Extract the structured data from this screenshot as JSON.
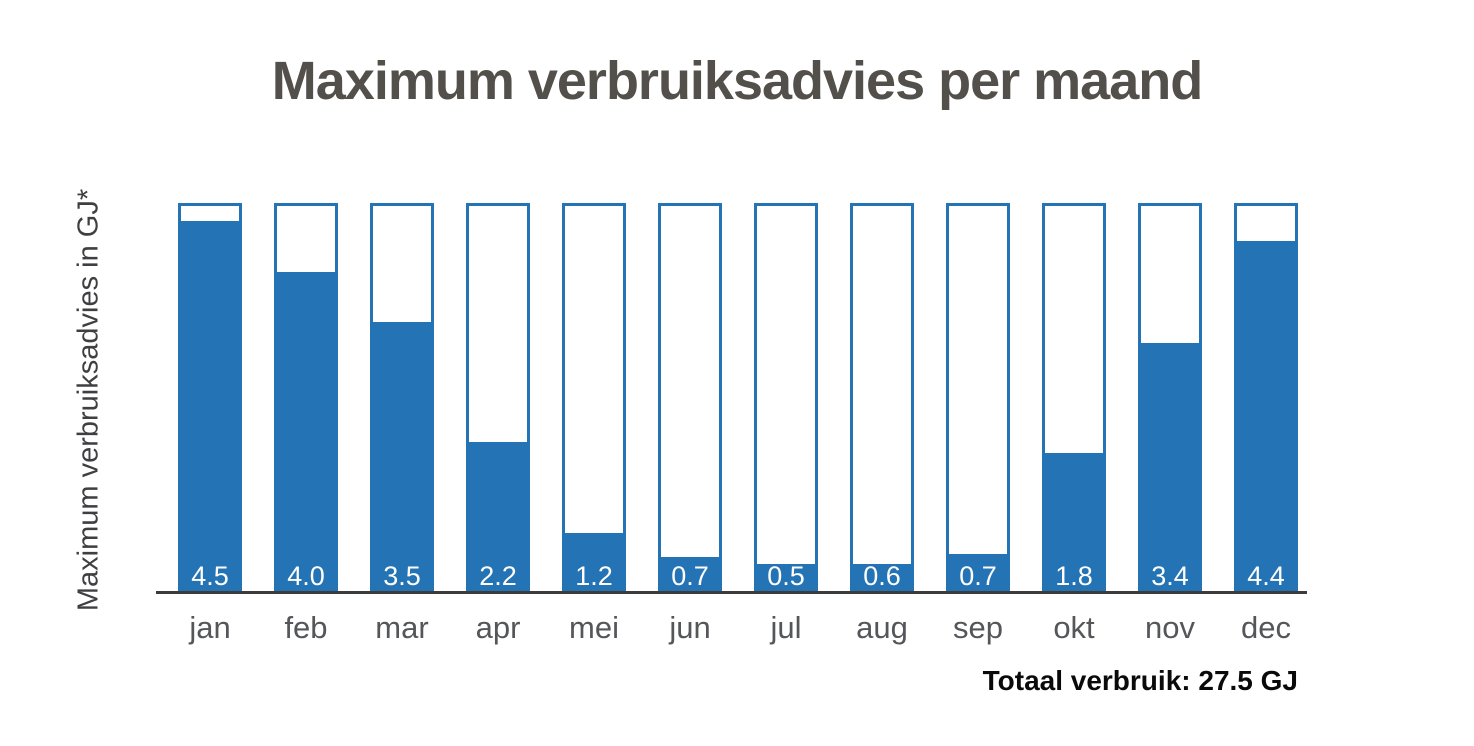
{
  "title": "Maximum verbruiksadvies per maand",
  "y_axis_label": "Maximum verbruiksadvies in GJ*",
  "total_label": "Totaal verbruik: 27.5 GJ",
  "colors": {
    "bar_fill": "#2473B4",
    "bar_border": "#2473B4",
    "title_text": "#53504B",
    "y_axis_label_text": "#3F3F41",
    "month_label_text": "#55565A",
    "axis_line": "#3C3C3C",
    "value_label_text": "#FFFFFF",
    "total_text": "#0A0A0A",
    "background": "#FFFFFF"
  },
  "chart_data": {
    "type": "bar",
    "title": "Maximum verbruiksadvies per maand",
    "xlabel": "",
    "ylabel": "Maximum verbruiksadvies in GJ*",
    "categories": [
      "jan",
      "feb",
      "mar",
      "apr",
      "mei",
      "jun",
      "jul",
      "aug",
      "sep",
      "okt",
      "nov",
      "dec"
    ],
    "values": [
      4.5,
      4.0,
      3.5,
      2.2,
      1.2,
      0.7,
      0.5,
      0.6,
      0.7,
      1.8,
      3.4,
      4.4
    ],
    "value_labels": [
      "4.5",
      "4.0",
      "3.5",
      "2.2",
      "1.2",
      "0.7",
      "0.5",
      "0.6",
      "0.7",
      "1.8",
      "3.4",
      "4.4"
    ],
    "fill_percents": [
      96.2,
      82.9,
      70.1,
      38.9,
      15.6,
      9.2,
      7.4,
      7.4,
      10.0,
      36.1,
      64.5,
      91.0
    ],
    "unit": "GJ",
    "ylim": [
      0,
      4.7
    ],
    "grid": false,
    "legend": false,
    "bar_style": "outlined-frame-with-partial-fill",
    "value_label_position": "inside-bottom",
    "total_text": "Totaal verbruik: 27.5 GJ",
    "total_value_gj": 27.5
  }
}
